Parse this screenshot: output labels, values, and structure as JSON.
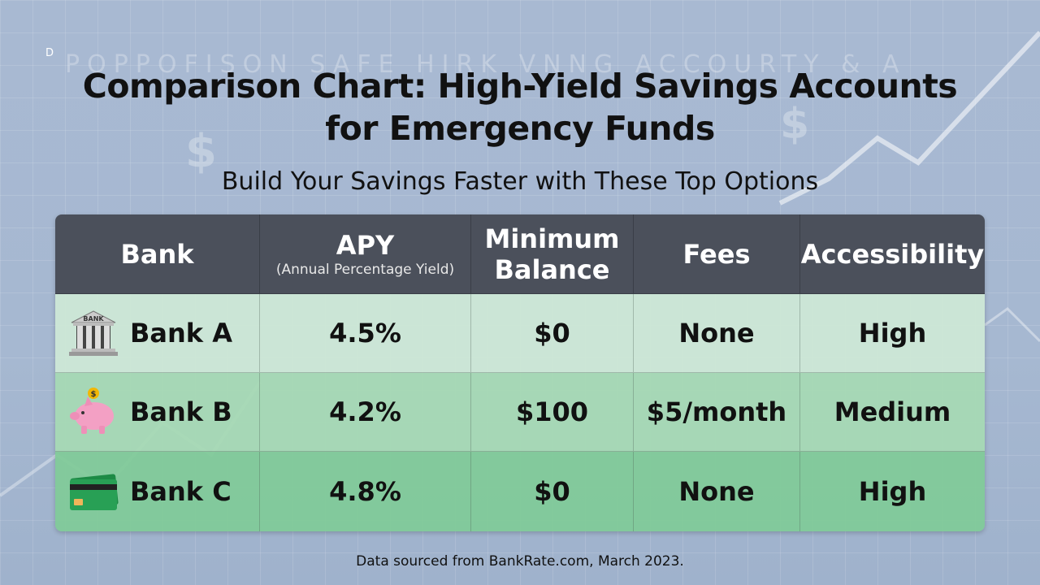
{
  "background": {
    "watermark": "POPPOFISON SAFE HIRK VNNG ACCOURTY & A",
    "corner_mark": "D"
  },
  "title": "Comparison Chart: High-Yield Savings Accounts for Emergency Funds",
  "title_line1": "Comparison Chart: High-Yield Savings Accounts",
  "title_line2": "for Emergency Funds",
  "subtitle": "Build Your Savings Faster with These Top Options",
  "footer": "Data sourced from BankRate.com, March 2023.",
  "colors": {
    "header": "#4b505b",
    "row_a": "#cde8d6",
    "row_b": "#a6d9b4",
    "row_c": "#80ca98"
  },
  "chart_data": {
    "type": "table",
    "title": "Comparison Chart: High-Yield Savings Accounts for Emergency Funds",
    "columns": [
      {
        "label": "Bank",
        "sublabel": ""
      },
      {
        "label": "APY",
        "sublabel": "(Annual Percentage Yield)"
      },
      {
        "label": "Minimum Balance",
        "sublabel": ""
      },
      {
        "label": "Fees",
        "sublabel": ""
      },
      {
        "label": "Accessibility",
        "sublabel": ""
      }
    ],
    "rows": [
      {
        "icon": "bank-building-icon",
        "bank": "Bank A",
        "apy": "4.5%",
        "min_balance": "$0",
        "fees": "None",
        "accessibility": "High"
      },
      {
        "icon": "piggy-bank-icon",
        "bank": "Bank B",
        "apy": "4.2%",
        "min_balance": "$100",
        "fees": "$5/month",
        "accessibility": "Medium"
      },
      {
        "icon": "credit-card-icon",
        "bank": "Bank C",
        "apy": "4.8%",
        "min_balance": "$0",
        "fees": "None",
        "accessibility": "High"
      }
    ]
  }
}
